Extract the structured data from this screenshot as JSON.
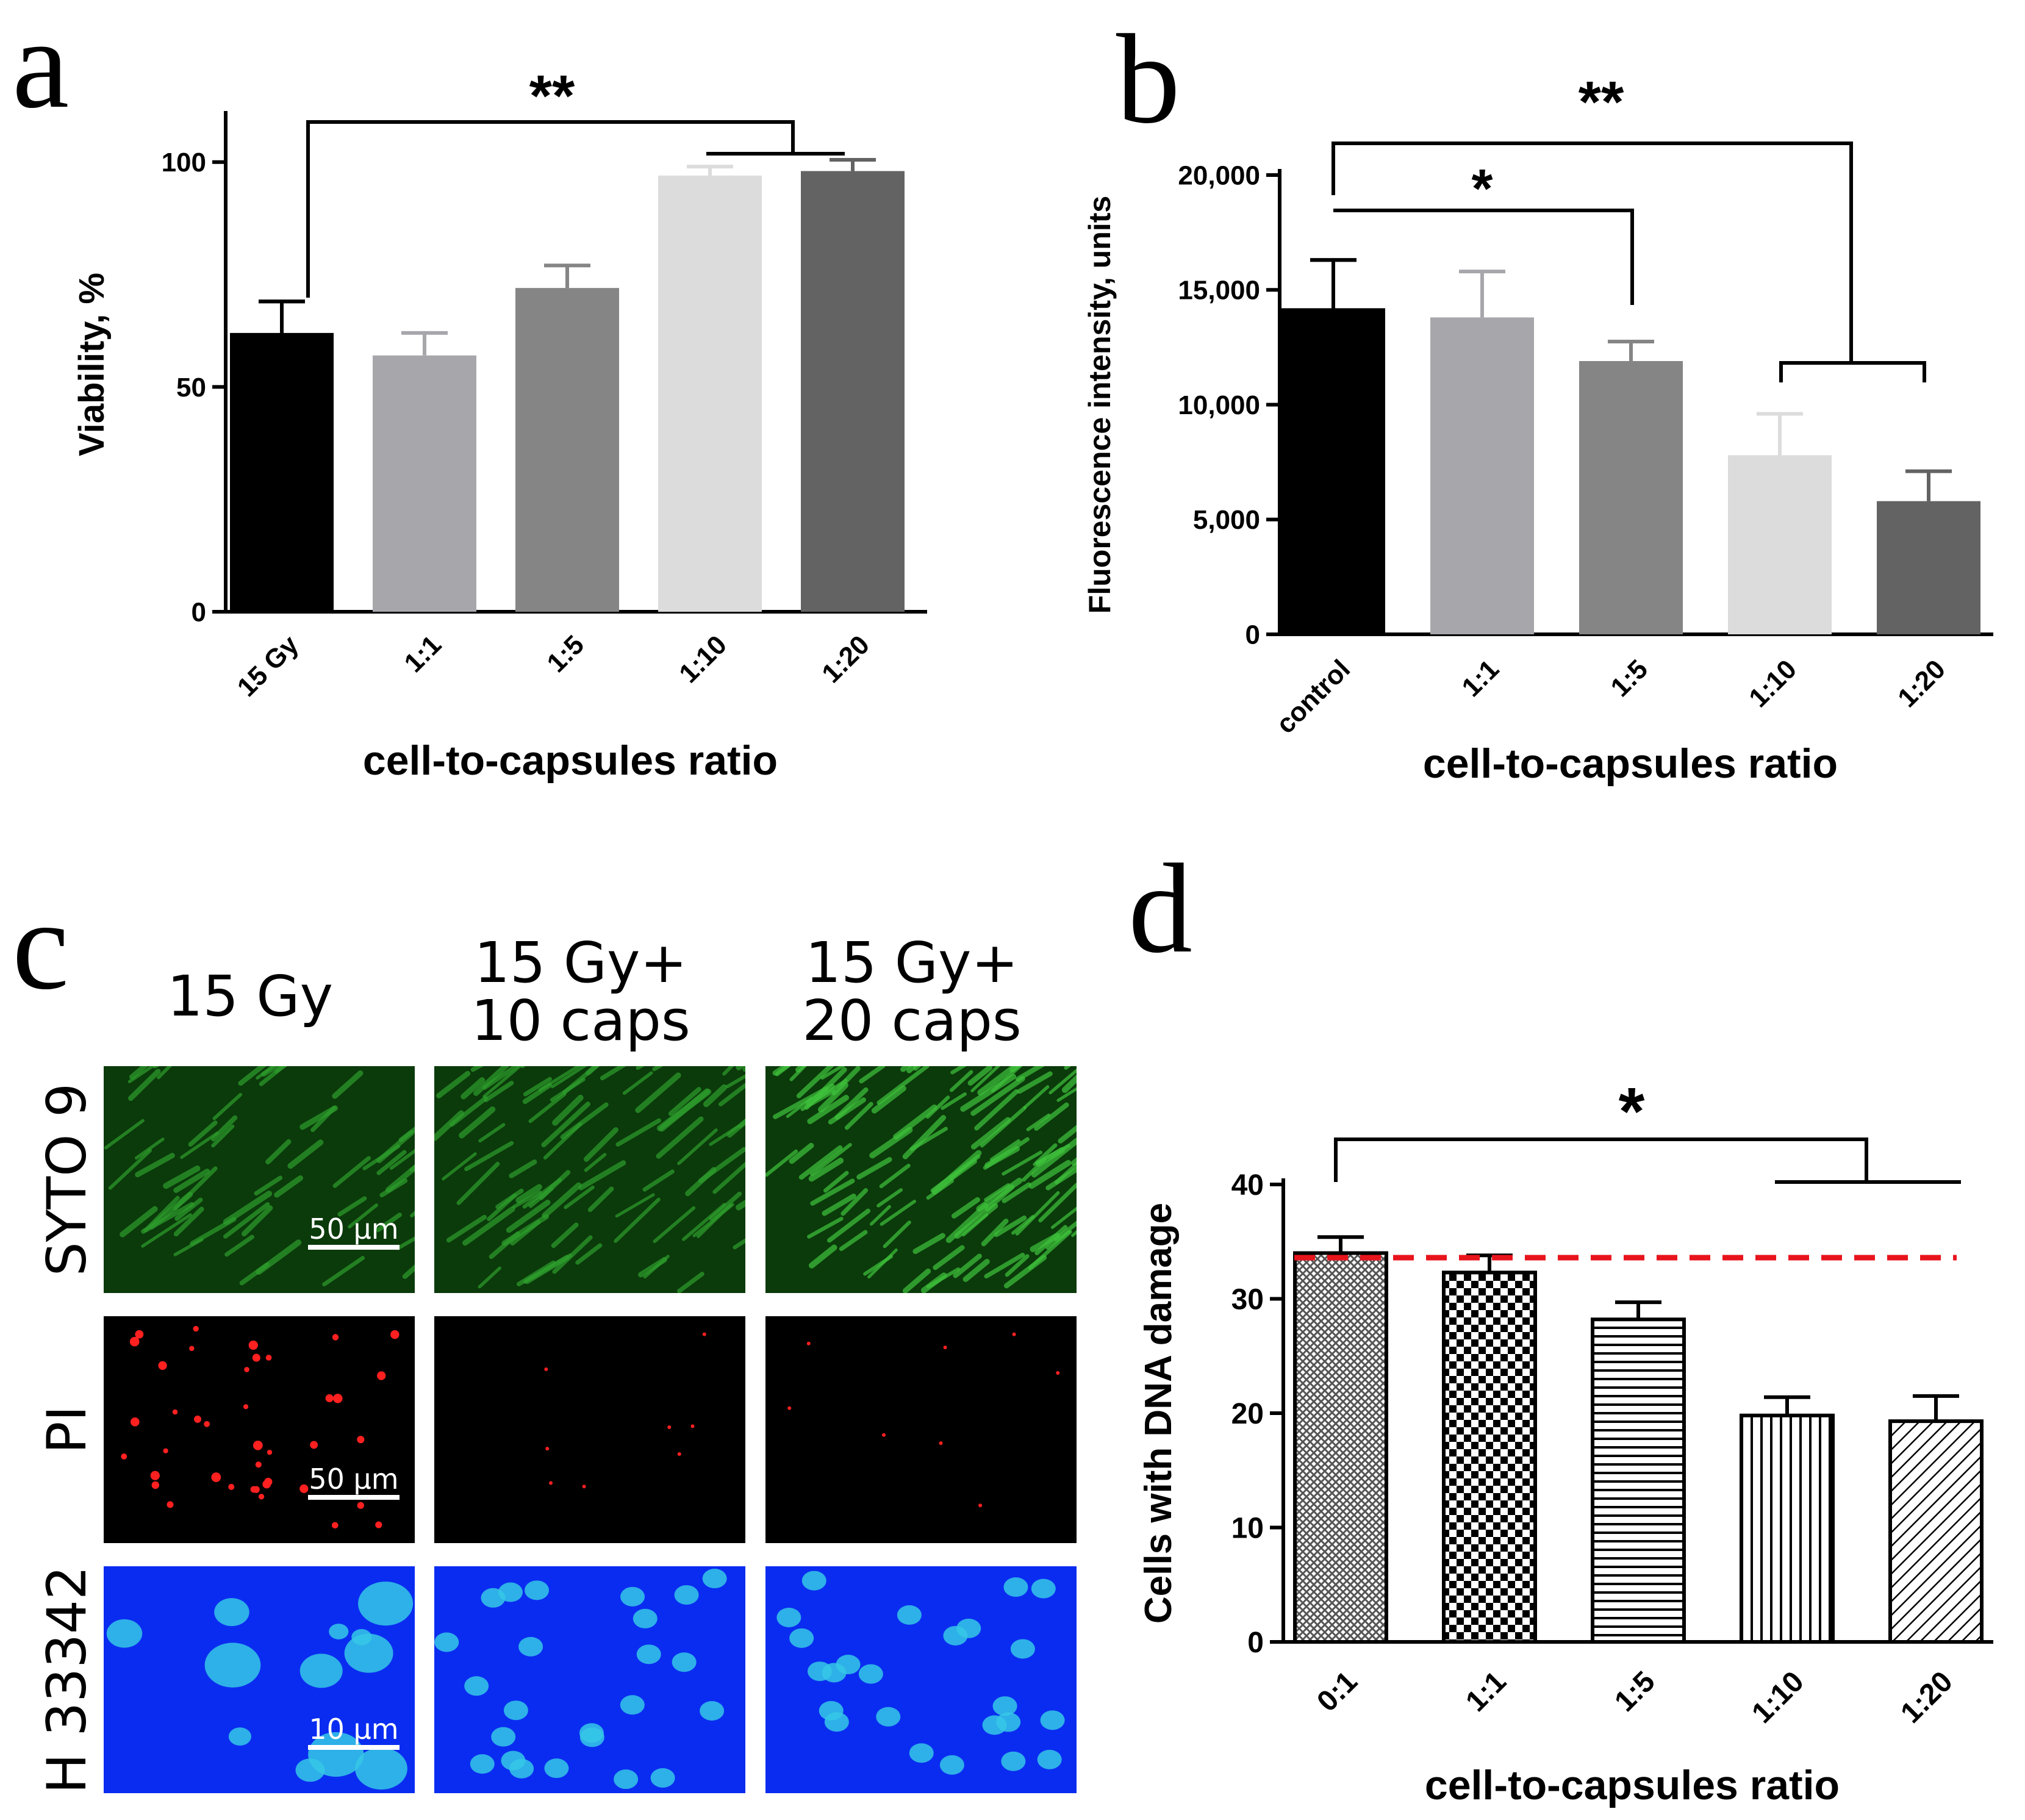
{
  "panels": {
    "a": {
      "letter": "a"
    },
    "b": {
      "letter": "b"
    },
    "c": {
      "letter": "c"
    },
    "d": {
      "letter": "d"
    }
  },
  "chart_data": [
    {
      "panel": "a",
      "type": "bar",
      "categories": [
        "15 Gy",
        "1:1",
        "1:5",
        "1:10",
        "1:20"
      ],
      "values": [
        62,
        57,
        72,
        97,
        98
      ],
      "errors": [
        7,
        5,
        5,
        2,
        2.5
      ],
      "colors": [
        "#000000",
        "#a7a6ab",
        "#858585",
        "#dcdcdc",
        "#636363"
      ],
      "xlabel": "cell-to-capsules ratio",
      "ylabel": "Viability, %",
      "ylim": [
        0,
        110
      ],
      "yticks": [
        0,
        50,
        100
      ],
      "ytick_labels": [
        "0",
        "50",
        "100"
      ],
      "significance": [
        {
          "label": "**",
          "from": "15 Gy",
          "to": [
            "1:10",
            "1:20"
          ]
        }
      ]
    },
    {
      "panel": "b",
      "type": "bar",
      "categories": [
        "control",
        "1:1",
        "1:5",
        "1:10",
        "1:20"
      ],
      "values": [
        14200,
        13800,
        11900,
        7800,
        5800
      ],
      "errors": [
        2100,
        2000,
        850,
        1800,
        1300
      ],
      "colors": [
        "#000000",
        "#a7a6ab",
        "#858585",
        "#dcdcdc",
        "#636363"
      ],
      "xlabel": "cell-to-capsules ratio",
      "ylabel": "Fluorescence intensity, units",
      "ylim": [
        0,
        20000
      ],
      "yticks": [
        0,
        5000,
        10000,
        15000,
        20000
      ],
      "ytick_labels": [
        "0",
        "5,000",
        "10,000",
        "15,000",
        "20,000"
      ],
      "significance": [
        {
          "label": "*",
          "from": "control",
          "to": [
            "1:5"
          ]
        },
        {
          "label": "**",
          "from": "control",
          "to": [
            "1:10",
            "1:20"
          ]
        }
      ]
    },
    {
      "panel": "d",
      "type": "bar",
      "categories": [
        "0:1",
        "1:1",
        "1:5",
        "1:10",
        "1:20"
      ],
      "values": [
        34,
        32.3,
        28.2,
        19.8,
        19.3
      ],
      "errors": [
        1.4,
        1.5,
        1.5,
        1.6,
        2.2
      ],
      "patterns": [
        "fine-crosshatch",
        "checker",
        "horizontal-lines",
        "vertical-lines",
        "diagonal-lines"
      ],
      "reference_line": {
        "value": 33.6,
        "color": "#e8141c",
        "style": "dashed"
      },
      "xlabel": "cell-to-capsules ratio",
      "ylabel": "Cells with DNA damage",
      "ylim": [
        0,
        40
      ],
      "yticks": [
        0,
        10,
        20,
        30,
        40
      ],
      "ytick_labels": [
        "0",
        "10",
        "20",
        "30",
        "40"
      ],
      "significance": [
        {
          "label": "*",
          "from": "0:1",
          "to": [
            "1:10",
            "1:20"
          ]
        }
      ]
    }
  ],
  "micrographs": {
    "columns": [
      "15 Gy",
      "15 Gy+\n10 caps",
      "15 Gy+\n20 caps"
    ],
    "column_lines": [
      [
        "15 Gy"
      ],
      [
        "15 Gy+",
        "10 caps"
      ],
      [
        "15 Gy+",
        "20 caps"
      ]
    ],
    "rows": [
      {
        "stain": "SYTO 9",
        "color": "#1f8a1d",
        "background": "#0b3a0b",
        "scale_bar": "50 µm"
      },
      {
        "stain": "PI",
        "color": "#ff2020",
        "background": "#000000",
        "scale_bar": "50 µm"
      },
      {
        "stain": "H 33342",
        "color": "#35c8e6",
        "background": "#0a2cf0",
        "scale_bar": "10 µm"
      }
    ]
  }
}
